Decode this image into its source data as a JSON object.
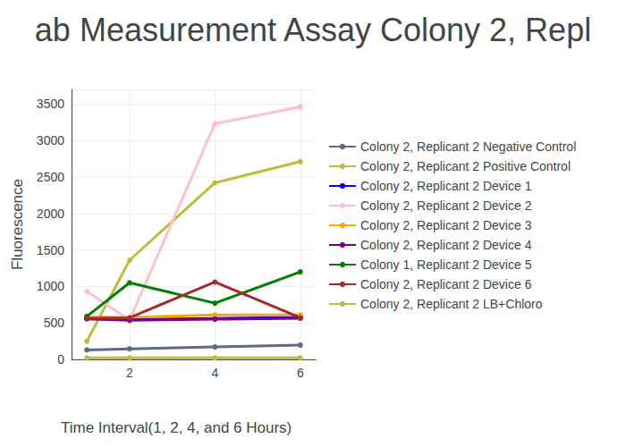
{
  "chart_data": {
    "type": "line",
    "title": "ab Measurement Assay Colony 2, Repl",
    "x_label": "Time Interval(1, 2, 4, and 6 Hours)",
    "y_label": "Fluorescence",
    "x": [
      1,
      2,
      4,
      6
    ],
    "xlim": [
      0.64,
      6.36
    ],
    "xticks": [
      2,
      4,
      6
    ],
    "ylim": [
      0,
      3700
    ],
    "yticks": [
      0,
      500,
      1000,
      1500,
      2000,
      2500,
      3000,
      3500
    ],
    "grid": true,
    "legend": "right",
    "marker": "circle",
    "series": [
      {
        "name": "Colony 2, Replicant 2 Negative Control",
        "color": "#5d6b85",
        "values": [
          130,
          145,
          170,
          195
        ]
      },
      {
        "name": "Colony 2, Replicant 2 Positive Control",
        "color": "#bcbd3c",
        "values": [
          250,
          1360,
          2420,
          2710
        ]
      },
      {
        "name": "Colony 2, Replicant 2 Device 1",
        "color": "#0000ff",
        "values": [
          565,
          545,
          560,
          575
        ]
      },
      {
        "name": "Colony 2, Replicant 2 Device 2",
        "color": "#ffc0cb",
        "values": [
          930,
          540,
          3230,
          3460
        ]
      },
      {
        "name": "Colony 2, Replicant 2 Device 3",
        "color": "#ffa500",
        "values": [
          580,
          575,
          610,
          610
        ]
      },
      {
        "name": "Colony 2, Replicant 2 Device 4",
        "color": "#800080",
        "values": [
          555,
          535,
          550,
          565
        ]
      },
      {
        "name": "Colony 1, Replicant 2 Device 5",
        "color": "#008000",
        "values": [
          590,
          1050,
          770,
          1200
        ]
      },
      {
        "name": "Colony 2, Replicant 2 Device 6",
        "color": "#a52a2a",
        "values": [
          565,
          570,
          1060,
          570
        ]
      },
      {
        "name": "Colony 2, Replicant 2 LB+Chloro",
        "color": "#bcbd3c",
        "values": [
          20,
          20,
          20,
          20
        ]
      }
    ]
  }
}
